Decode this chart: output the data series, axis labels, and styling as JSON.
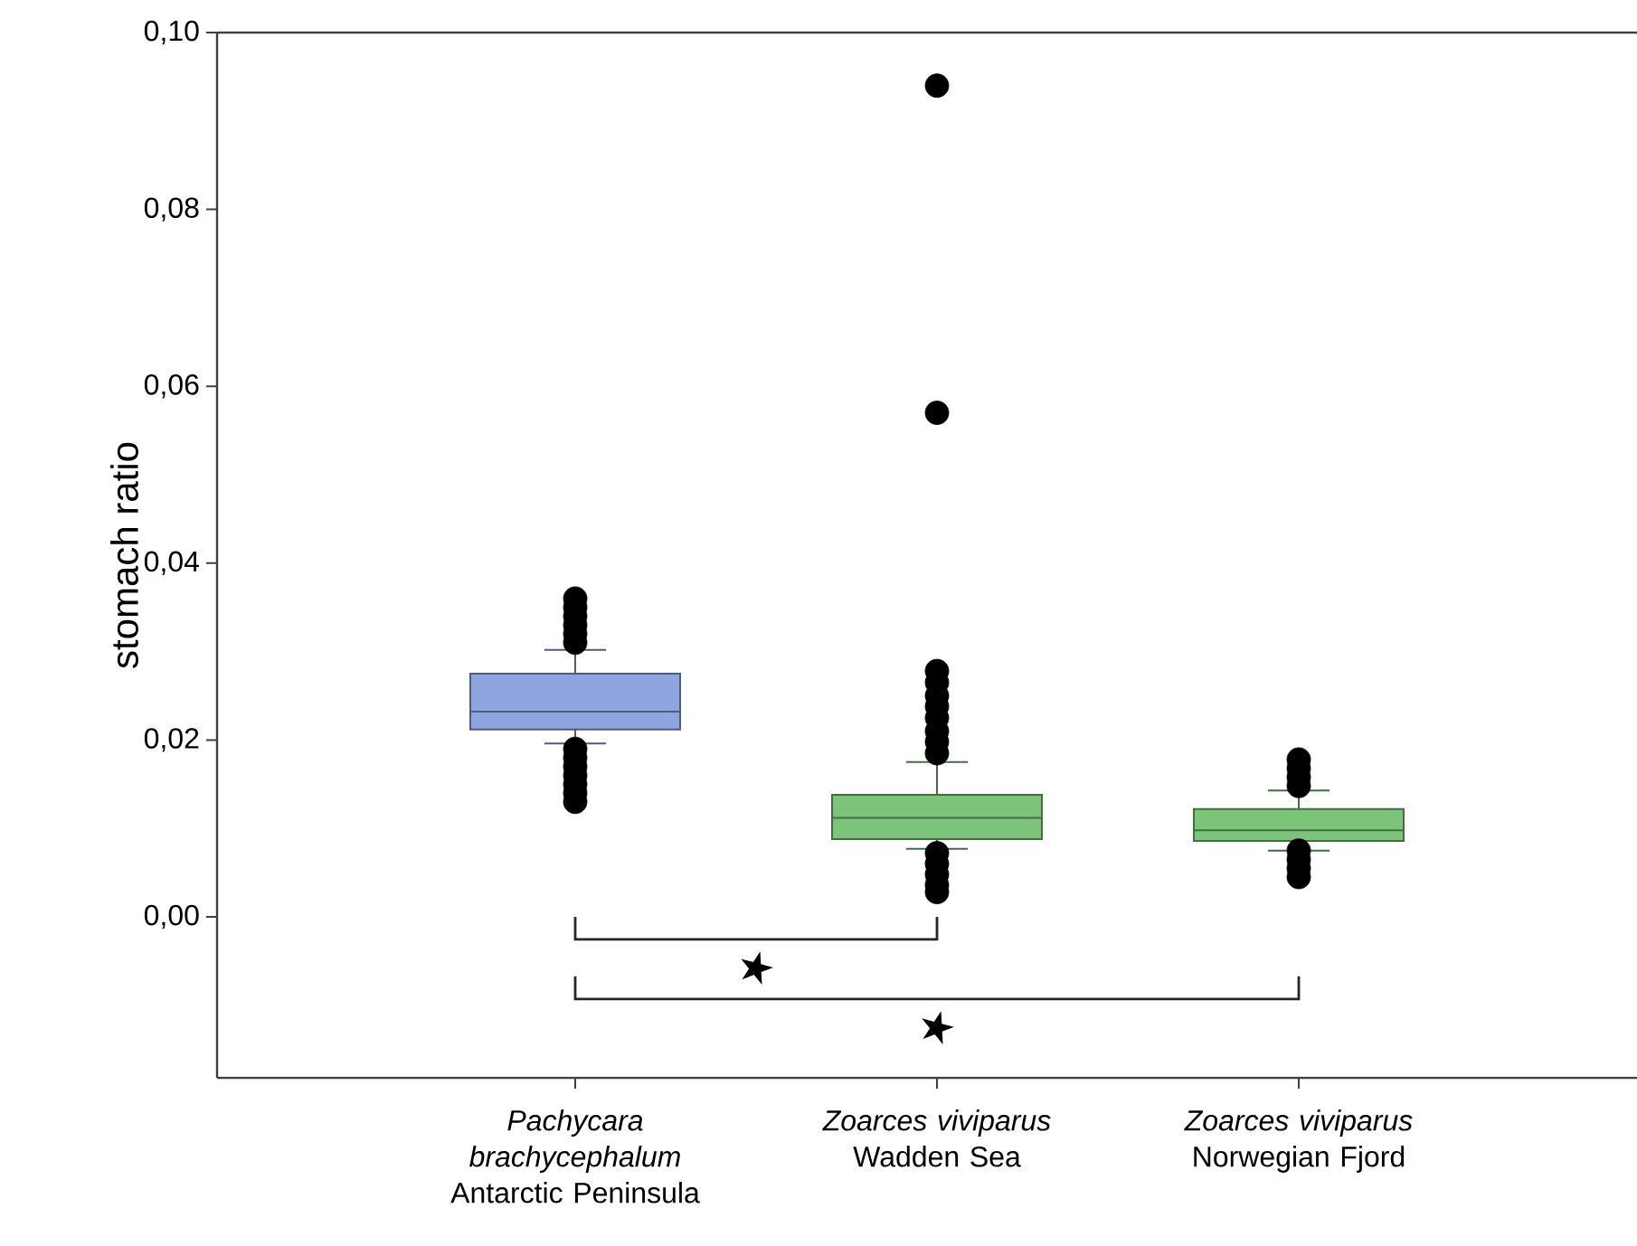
{
  "chart_data": {
    "type": "box",
    "ylabel": "stomach ratio",
    "categories": [
      "*Pachycara brachycephalum* Antarctic Peninsula",
      "*Zoarces viviparus* Wadden Sea",
      "*Zoarces viviparus* Norwegian Fjord"
    ],
    "colors": [
      "#8ea5e0",
      "#7cc47a",
      "#7cc47a"
    ],
    "boxes": [
      {
        "low": 0.0196,
        "q1": 0.0212,
        "median": 0.0232,
        "q3": 0.0275,
        "high": 0.0302,
        "outliers": [
          0.036,
          0.035,
          0.034,
          0.033,
          0.032,
          0.031,
          0.019,
          0.018,
          0.017,
          0.016,
          0.015,
          0.014,
          0.013
        ]
      },
      {
        "low": 0.0077,
        "q1": 0.0088,
        "median": 0.0112,
        "q3": 0.0138,
        "high": 0.0175,
        "outliers": [
          0.094,
          0.057,
          0.0278,
          0.0265,
          0.025,
          0.0238,
          0.0225,
          0.021,
          0.0198,
          0.0185,
          0.0072,
          0.006,
          0.0048,
          0.0036,
          0.0028
        ]
      },
      {
        "low": 0.0075,
        "q1": 0.0086,
        "median": 0.0098,
        "q3": 0.0122,
        "high": 0.0143,
        "outliers": [
          0.0178,
          0.0168,
          0.0158,
          0.0148,
          0.0075,
          0.0065,
          0.0055,
          0.0045
        ]
      }
    ],
    "marker": "circle",
    "ylim": [
      -0.0182,
      0.1
    ],
    "yticks": [
      {
        "value": 0,
        "label": "0,00"
      },
      {
        "value": 0.02,
        "label": "0,02"
      },
      {
        "value": 0.04,
        "label": "0,04"
      },
      {
        "value": 0.06,
        "label": "0,06"
      },
      {
        "value": 0.08,
        "label": "0,08"
      },
      {
        "value": 0.1,
        "label": "0,10"
      }
    ],
    "annotations": [
      "★",
      "★"
    ]
  }
}
